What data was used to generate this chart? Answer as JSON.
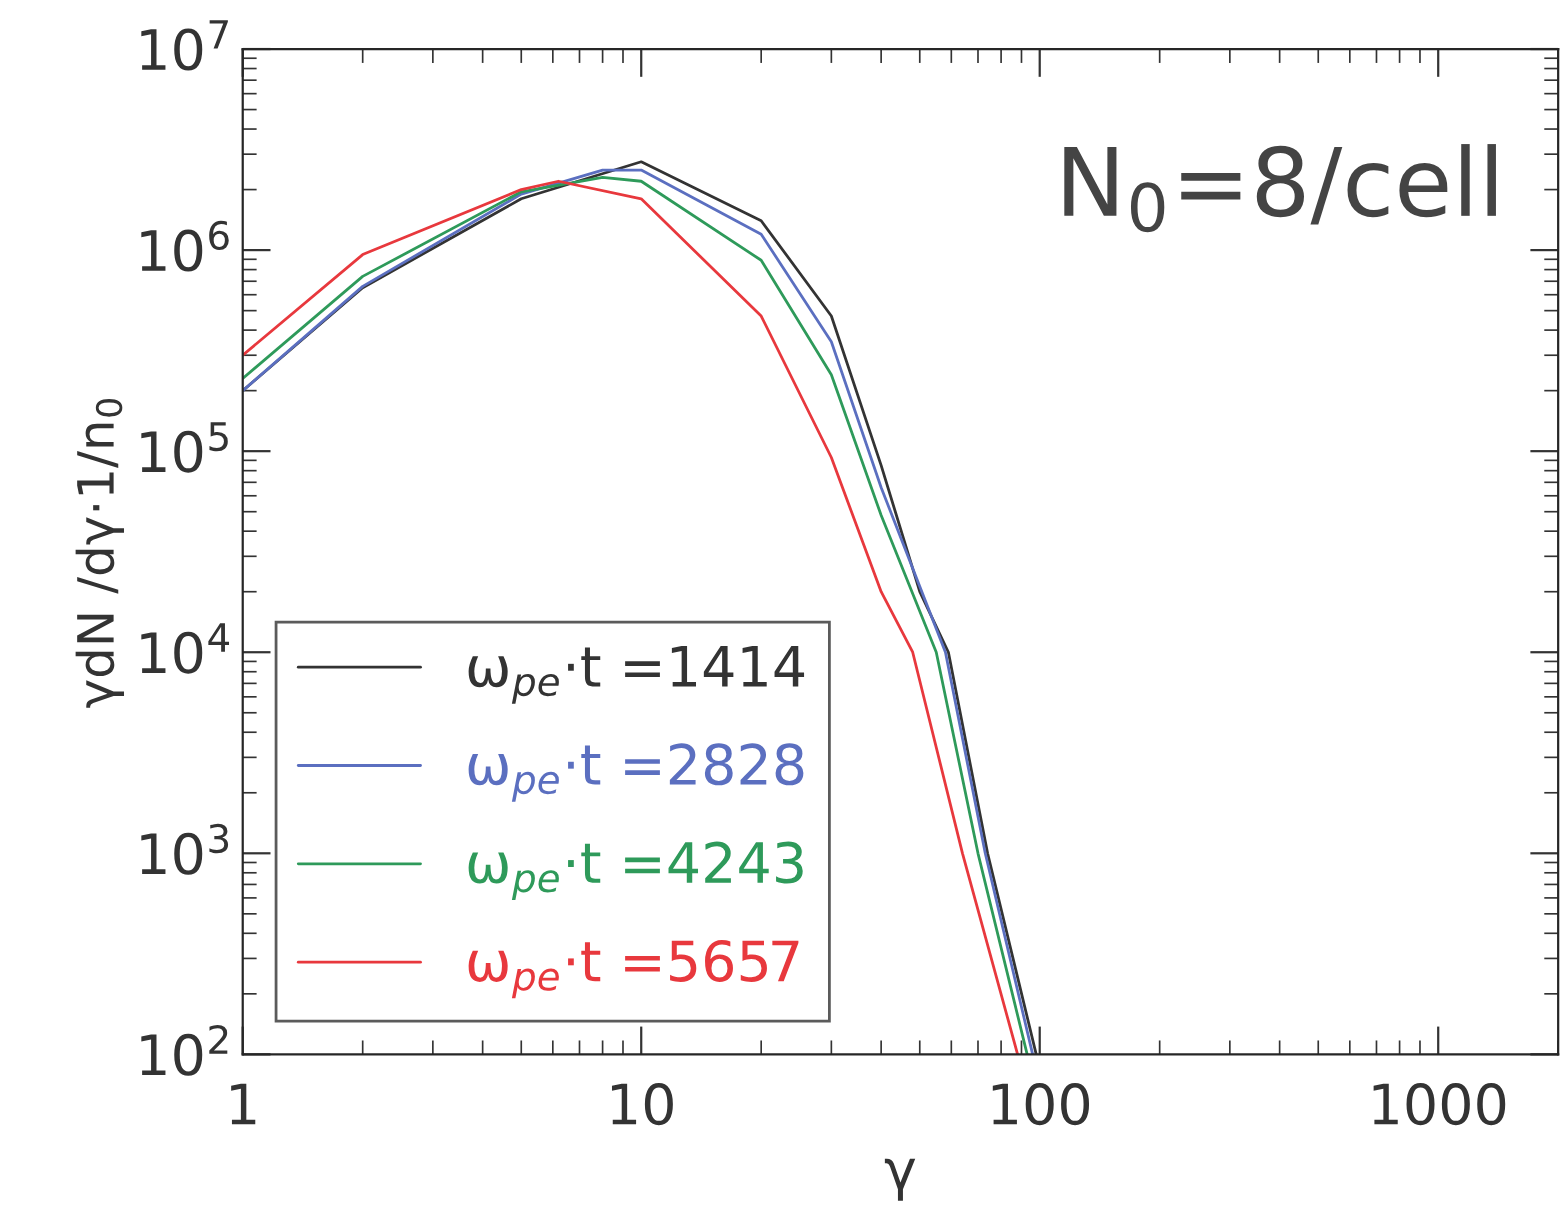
{
  "chart_data": {
    "type": "line",
    "xlabel": "γ",
    "ylabel": "γdN /dγ·1/n$_{0}$",
    "log": "xy",
    "grid": false,
    "legend": "bottom left",
    "line_style": "solid",
    "marker": "none",
    "xlim": [
      1,
      2000
    ],
    "xticks": [
      1,
      10,
      100,
      1000
    ],
    "ylim": [
      100,
      10000000
    ],
    "yticks": [
      {
        "value": 100,
        "label": "10$^{2}$"
      },
      {
        "value": 1000,
        "label": "10$^{3}$"
      },
      {
        "value": 10000,
        "label": "10$^{4}$"
      },
      {
        "value": 100000,
        "label": "10$^{5}$"
      },
      {
        "value": 1000000,
        "label": "10$^{6}$"
      },
      {
        "value": 10000000,
        "label": "10$^{7}$"
      }
    ],
    "annotations": [
      "N$_{0}$=8/cell"
    ],
    "series": [
      {
        "name": "ω$_{pe}$·t =1414",
        "color": "#333333",
        "x": [
          1,
          2,
          5,
          10,
          20,
          30,
          40,
          50,
          59,
          74,
          98
        ],
        "values": [
          200000,
          650000,
          1800000,
          2750000,
          1400000,
          470000,
          85000,
          20000,
          10000,
          1000,
          100
        ]
      },
      {
        "name": "ω$_{pe}$·t =2828",
        "color": "#5b6fc0",
        "x": [
          1,
          2,
          5,
          8,
          10,
          20,
          30,
          40,
          58,
          73,
          96
        ],
        "values": [
          200000,
          660000,
          1900000,
          2500000,
          2500000,
          1200000,
          350000,
          66000,
          10000,
          1000,
          100
        ]
      },
      {
        "name": "ω$_{pe}$·t =4243",
        "color": "#2e9a5a",
        "x": [
          1,
          2,
          5,
          8,
          10,
          20,
          30,
          40,
          55,
          70,
          93
        ],
        "values": [
          230000,
          740000,
          1950000,
          2300000,
          2200000,
          890000,
          240000,
          48000,
          10000,
          1000,
          100
        ]
      },
      {
        "name": "ω$_{pe}$·t =5657",
        "color": "#e8383d",
        "x": [
          1,
          2,
          5,
          6.2,
          10,
          20,
          30,
          40,
          48,
          64,
          88
        ],
        "values": [
          300000,
          950000,
          2000000,
          2200000,
          1800000,
          470000,
          93000,
          20000,
          10000,
          1000,
          100
        ]
      }
    ]
  }
}
